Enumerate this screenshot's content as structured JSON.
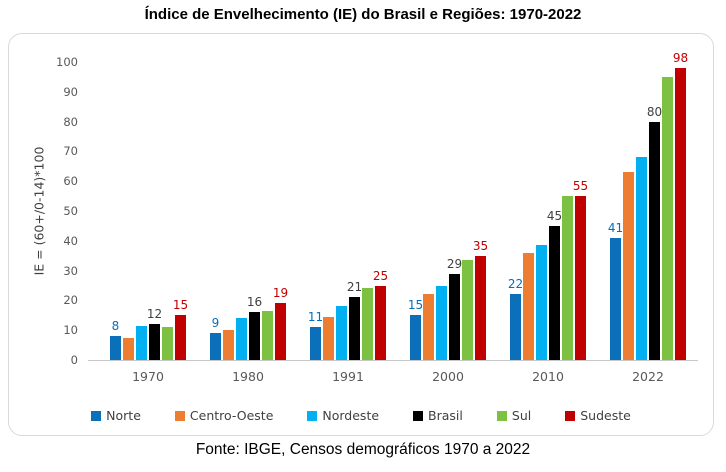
{
  "title": "Índice de Envelhecimento (IE) do Brasil e Regiões: 1970-2022",
  "footer": "Fonte: IBGE, Censos demográficos 1970 a 2022",
  "colors": {
    "frame_border": "#D9D9D9",
    "axis_line": "#C9C9C9",
    "tick_text": "#595959",
    "axis_title_text": "#404040"
  },
  "chart_data": {
    "type": "bar",
    "title": "Índice de Envelhecimento (IE) do Brasil e Regiões: 1970-2022",
    "xlabel": "",
    "ylabel": "IE = (60+/0-14)*100",
    "categories": [
      "1970",
      "1980",
      "1991",
      "2000",
      "2010",
      "2022"
    ],
    "ylim": [
      0,
      100
    ],
    "yticks": [
      0,
      10,
      20,
      30,
      40,
      50,
      60,
      70,
      80,
      90,
      100
    ],
    "grid": false,
    "legend_position": "bottom",
    "series": [
      {
        "name": "Norte",
        "color": "#0B70B9",
        "values": [
          8,
          9,
          11,
          15,
          22,
          41
        ],
        "data_labels": [
          "8",
          "9",
          "11",
          "15",
          "22",
          "41"
        ],
        "label_color": "#0070C0"
      },
      {
        "name": "Centro-Oeste",
        "color": "#ED7D31",
        "values": [
          7.5,
          10,
          14.5,
          22,
          36,
          63
        ]
      },
      {
        "name": "Nordeste",
        "color": "#00B0F0",
        "values": [
          11.5,
          14,
          18,
          25,
          38.5,
          68
        ]
      },
      {
        "name": "Brasil",
        "color": "#000000",
        "values": [
          12,
          16,
          21,
          29,
          45,
          80
        ],
        "data_labels": [
          "12",
          "16",
          "21",
          "29",
          "45",
          "80"
        ],
        "label_color": "#404040"
      },
      {
        "name": "Sul",
        "color": "#7CC142",
        "values": [
          11,
          16.5,
          24,
          33.5,
          55,
          95
        ]
      },
      {
        "name": "Sudeste",
        "color": "#C00000",
        "values": [
          15,
          19,
          25,
          35,
          55,
          98
        ],
        "data_labels": [
          "15",
          "19",
          "25",
          "35",
          "55",
          "98"
        ],
        "label_color": "#C00000"
      }
    ],
    "source": "Fonte: IBGE, Censos demográficos 1970 a 2022"
  }
}
